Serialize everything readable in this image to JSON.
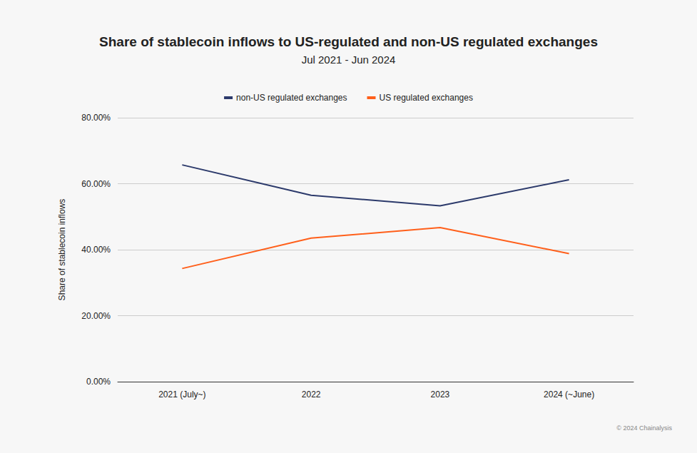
{
  "chart_data": {
    "type": "line",
    "title": "Share of stablecoin inflows to US-regulated and non-US regulated exchanges",
    "subtitle": "Jul 2021 - Jun 2024",
    "y_label": "Share of stablecoin inflows",
    "categories": [
      "2021 (July~)",
      "2022",
      "2023",
      "2024 (~June)"
    ],
    "series": [
      {
        "name": "non-US regulated exchanges",
        "color": "#2c3a6b",
        "values": [
          65.7,
          56.5,
          53.3,
          61.2
        ]
      },
      {
        "name": "US regulated exchanges",
        "color": "#ff5f1a",
        "values": [
          34.3,
          43.5,
          46.7,
          38.8
        ]
      }
    ],
    "ylim": [
      0,
      80
    ],
    "yticks": [
      {
        "value": 0,
        "label": "0.00%"
      },
      {
        "value": 20,
        "label": "20.00%"
      },
      {
        "value": 40,
        "label": "40.00%"
      },
      {
        "value": 60,
        "label": "60.00%"
      },
      {
        "value": 80,
        "label": "80.00%"
      }
    ],
    "grid": true,
    "legend": "top",
    "annotations": [
      "© 2024 Chainalysis"
    ]
  }
}
